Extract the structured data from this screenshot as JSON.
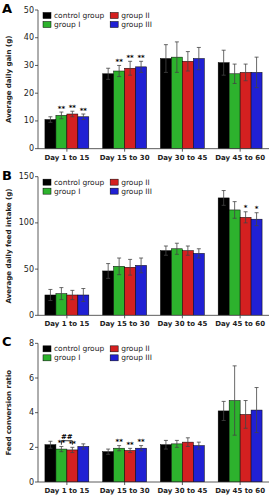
{
  "chart_data": [
    {
      "type": "bar",
      "title": "A",
      "ylabel": "Average daily gain (g)",
      "categories": [
        "Day 1 to 15",
        "Day 15 to 30",
        "Day 30 to 45",
        "Day 45 to 60"
      ],
      "series": [
        {
          "name": "control group",
          "color": "#000000",
          "values": [
            10.5,
            27.0,
            32.5,
            31.0
          ],
          "errors": [
            1.0,
            2.0,
            5.0,
            4.5
          ]
        },
        {
          "name": "group I",
          "color": "#2db22d",
          "values": [
            12.0,
            28.0,
            33.0,
            27.0
          ],
          "errors": [
            1.2,
            2.0,
            5.5,
            3.5
          ]
        },
        {
          "name": "group II",
          "color": "#d42020",
          "values": [
            12.5,
            29.0,
            31.5,
            27.5
          ],
          "errors": [
            1.0,
            2.5,
            3.5,
            3.0
          ]
        },
        {
          "name": "group III",
          "color": "#2020d4",
          "values": [
            11.5,
            29.5,
            32.5,
            27.5
          ],
          "errors": [
            1.0,
            2.0,
            4.0,
            5.5
          ]
        }
      ],
      "ylim": [
        0,
        50
      ],
      "yticks": [
        0,
        10,
        20,
        30,
        40,
        50
      ],
      "grid": false,
      "legend": "upper left",
      "annotations": [
        {
          "text": "**",
          "series": 1,
          "category": 0
        },
        {
          "text": "**",
          "series": 2,
          "category": 0
        },
        {
          "text": "**",
          "series": 3,
          "category": 0
        },
        {
          "text": "**",
          "series": 1,
          "category": 1
        },
        {
          "text": "**",
          "series": 2,
          "category": 1
        },
        {
          "text": "**",
          "series": 3,
          "category": 1
        }
      ]
    },
    {
      "type": "bar",
      "title": "B",
      "ylabel": "Average daily feed intake (g)",
      "categories": [
        "Day 1 to 15",
        "Day 15 to 30",
        "Day 30 to 45",
        "Day 45 to 60"
      ],
      "series": [
        {
          "name": "control group",
          "color": "#000000",
          "values": [
            22.0,
            48.0,
            70.0,
            127.0
          ],
          "errors": [
            6.0,
            8.0,
            5.0,
            8.0
          ]
        },
        {
          "name": "group I",
          "color": "#2db22d",
          "values": [
            23.5,
            53.0,
            72.0,
            114.0
          ],
          "errors": [
            6.5,
            9.0,
            6.0,
            9.0
          ]
        },
        {
          "name": "group II",
          "color": "#d42020",
          "values": [
            22.0,
            52.0,
            70.0,
            106.0
          ],
          "errors": [
            5.0,
            8.5,
            5.0,
            6.0
          ]
        },
        {
          "name": "group III",
          "color": "#2020d4",
          "values": [
            22.0,
            54.0,
            67.0,
            104.0
          ],
          "errors": [
            7.0,
            8.0,
            5.0,
            7.0
          ]
        }
      ],
      "ylim": [
        0,
        150
      ],
      "yticks": [
        0,
        50,
        100,
        150
      ],
      "grid": false,
      "legend": "upper left",
      "annotations": [
        {
          "text": "*",
          "series": 2,
          "category": 3
        },
        {
          "text": "*",
          "series": 3,
          "category": 3
        }
      ]
    },
    {
      "type": "bar",
      "title": "C",
      "ylabel": "Feed conversion ratio",
      "categories": [
        "Day 1 to 15",
        "Day 15 to 30",
        "Day 30 to 45",
        "Day 45 to 60"
      ],
      "series": [
        {
          "name": "control group",
          "color": "#000000",
          "values": [
            2.15,
            1.75,
            2.15,
            4.1
          ],
          "errors": [
            0.2,
            0.15,
            0.25,
            0.55
          ]
        },
        {
          "name": "group I",
          "color": "#2db22d",
          "values": [
            1.9,
            1.95,
            2.2,
            4.7
          ],
          "errors": [
            0.15,
            0.15,
            0.2,
            2.0
          ]
        },
        {
          "name": "group II",
          "color": "#d42020",
          "values": [
            1.85,
            1.82,
            2.3,
            3.9
          ],
          "errors": [
            0.15,
            0.12,
            0.25,
            0.8
          ]
        },
        {
          "name": "group III",
          "color": "#2020d4",
          "values": [
            2.05,
            1.95,
            2.1,
            4.15
          ],
          "errors": [
            0.15,
            0.15,
            0.2,
            1.3
          ]
        }
      ],
      "ylim": [
        0,
        8
      ],
      "yticks": [
        0,
        2,
        4,
        6,
        8
      ],
      "grid": false,
      "legend": "upper left",
      "annotations": [
        {
          "text": "**",
          "series": 1,
          "category": 0
        },
        {
          "text": "**",
          "series": 2,
          "category": 0
        },
        {
          "text": "**",
          "series": 1,
          "category": 1
        },
        {
          "text": "**",
          "series": 2,
          "category": 1
        },
        {
          "text": "**",
          "series": 3,
          "category": 1
        },
        {
          "text": "##",
          "series": [
            1,
            2
          ],
          "category": 0,
          "y": 2.38
        }
      ]
    }
  ]
}
